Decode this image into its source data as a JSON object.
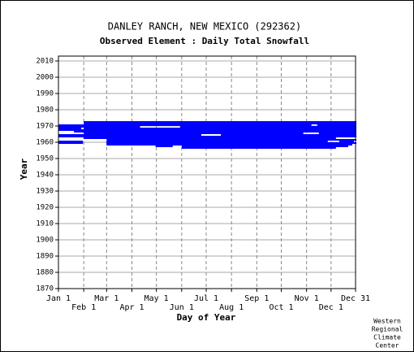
{
  "chart_data": {
    "type": "range",
    "title": "DANLEY RANCH, NEW MEXICO   (292362)",
    "subtitle": "Observed Element : Daily Total Snowfall",
    "x_label": "Day of Year",
    "y_label": "Year",
    "color": "#0000ff",
    "xlim": [
      1,
      365
    ],
    "ylim": [
      1870,
      2013
    ],
    "xticks": [
      {
        "value": 1,
        "label": "Jan 1"
      },
      {
        "value": 32,
        "label": "Feb 1"
      },
      {
        "value": 60,
        "label": "Mar 1"
      },
      {
        "value": 91,
        "label": "Apr 1"
      },
      {
        "value": 121,
        "label": "May 1"
      },
      {
        "value": 152,
        "label": "Jun 1"
      },
      {
        "value": 182,
        "label": "Jul 1"
      },
      {
        "value": 213,
        "label": "Aug 1"
      },
      {
        "value": 244,
        "label": "Sep 1"
      },
      {
        "value": 274,
        "label": "Oct 1"
      },
      {
        "value": 305,
        "label": "Nov 1"
      },
      {
        "value": 335,
        "label": "Dec 1"
      },
      {
        "value": 365,
        "label": "Dec 31"
      }
    ],
    "yticks": [
      1870,
      1880,
      1890,
      1900,
      1910,
      1920,
      1930,
      1940,
      1950,
      1960,
      1970,
      1980,
      1990,
      2000,
      2010
    ],
    "grid": true,
    "segments": [
      {
        "year": 1972,
        "start": 32,
        "end": 365
      },
      {
        "year": 1971,
        "start": 32,
        "end": 365
      },
      {
        "year": 1970,
        "start": 1,
        "end": 310
      },
      {
        "year": 1970,
        "start": 318,
        "end": 365
      },
      {
        "year": 1969,
        "start": 1,
        "end": 100
      },
      {
        "year": 1969,
        "start": 150,
        "end": 365
      },
      {
        "year": 1968,
        "start": 1,
        "end": 28
      },
      {
        "year": 1968,
        "start": 32,
        "end": 365
      },
      {
        "year": 1967,
        "start": 1,
        "end": 365
      },
      {
        "year": 1966,
        "start": 20,
        "end": 365
      },
      {
        "year": 1965,
        "start": 32,
        "end": 300
      },
      {
        "year": 1965,
        "start": 320,
        "end": 365
      },
      {
        "year": 1964,
        "start": 1,
        "end": 175
      },
      {
        "year": 1964,
        "start": 200,
        "end": 365
      },
      {
        "year": 1963,
        "start": 1,
        "end": 365
      },
      {
        "year": 1962,
        "start": 32,
        "end": 340
      },
      {
        "year": 1961,
        "start": 60,
        "end": 365
      },
      {
        "year": 1960,
        "start": 1,
        "end": 30
      },
      {
        "year": 1960,
        "start": 60,
        "end": 330
      },
      {
        "year": 1960,
        "start": 345,
        "end": 362
      },
      {
        "year": 1959,
        "start": 1,
        "end": 30
      },
      {
        "year": 1959,
        "start": 60,
        "end": 365
      },
      {
        "year": 1958,
        "start": 60,
        "end": 360
      },
      {
        "year": 1957,
        "start": 120,
        "end": 140
      },
      {
        "year": 1957,
        "start": 152,
        "end": 355
      },
      {
        "year": 1956,
        "start": 152,
        "end": 340
      }
    ],
    "footer": [
      "Western",
      "Regional",
      "Climate",
      "Center"
    ]
  }
}
